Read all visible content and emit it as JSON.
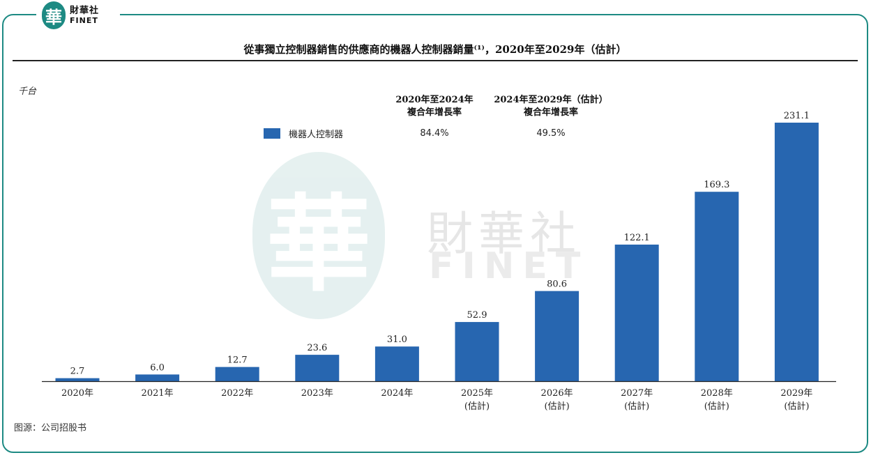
{
  "brand": {
    "logo_char": "華",
    "name_cn": "財華社",
    "name_en": "FINET",
    "accent_color": "#1d8a83"
  },
  "watermark": {
    "cn": "財華社",
    "en": "FINET"
  },
  "title": "從事獨立控制器銷售的供應商的機器人控制器銷量⁽¹⁾，2020年至2029年（估計）",
  "unit": "千台",
  "cagr": {
    "col1_header": [
      "2020年至2024年",
      "複合年增長率"
    ],
    "col2_header": [
      "2024年至2029年（估計）",
      "複合年增長率"
    ],
    "col1_value": "84.4%",
    "col2_value": "49.5%"
  },
  "source": "图源：公司招股书",
  "chart_data": {
    "type": "bar",
    "categories": [
      "2020年",
      "2021年",
      "2022年",
      "2023年",
      "2024年",
      "2025年\n(估計)",
      "2026年\n(估計)",
      "2027年\n(估計)",
      "2028年\n(估計)",
      "2029年\n(估計)"
    ],
    "category_lines": [
      [
        "2020年"
      ],
      [
        "2021年"
      ],
      [
        "2022年"
      ],
      [
        "2023年"
      ],
      [
        "2024年"
      ],
      [
        "2025年",
        "(估計)"
      ],
      [
        "2026年",
        "(估計)"
      ],
      [
        "2027年",
        "(估計)"
      ],
      [
        "2028年",
        "(估計)"
      ],
      [
        "2029年",
        "(估計)"
      ]
    ],
    "series": [
      {
        "name": "機器人控制器",
        "values": [
          2.7,
          6.0,
          12.7,
          23.6,
          31.0,
          52.9,
          80.6,
          122.1,
          169.3,
          231.1
        ],
        "color": "#2766b0"
      }
    ],
    "value_labels": [
      "2.7",
      "6.0",
      "12.7",
      "23.6",
      "31.0",
      "52.9",
      "80.6",
      "122.1",
      "169.3",
      "231.1"
    ],
    "ylabel": "千台",
    "ylim": [
      0,
      231.1
    ],
    "grid": false,
    "legend_position": "top"
  }
}
